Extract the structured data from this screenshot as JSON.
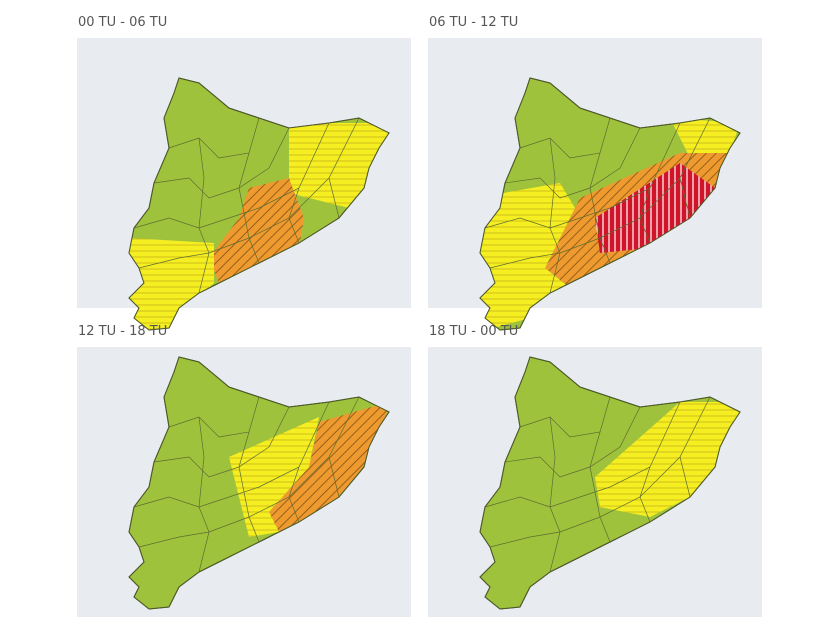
{
  "panels": [
    {
      "title": "00 TU - 06 TU"
    },
    {
      "title": "06 TU - 12 TU"
    },
    {
      "title": "12 TU - 18 TU"
    },
    {
      "title": "18 TU - 00 TU"
    }
  ]
}
